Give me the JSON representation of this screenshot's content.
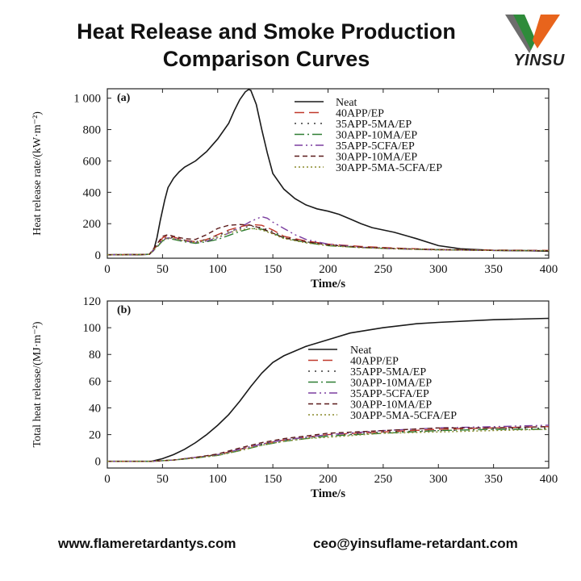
{
  "page": {
    "title_line1": "Heat Release and Smoke Production",
    "title_line2": "Comparison Curves",
    "brand": "YINSU",
    "website": "www.flameretardantys.com",
    "email": "ceo@yinsuflame-retardant.com"
  },
  "colors": {
    "logo_green": "#2e8b3a",
    "logo_orange": "#e8641c",
    "logo_grey": "#6d6d6d"
  },
  "chart_data": [
    {
      "type": "line",
      "panel_label": "(a)",
      "xlabel": "Time/s",
      "ylabel": "Heat release rate/(kW·m⁻²)",
      "xlim": [
        0,
        400
      ],
      "ylim": [
        -20,
        1060
      ],
      "xticks": [
        0,
        50,
        100,
        150,
        200,
        250,
        300,
        350,
        400
      ],
      "yticks": [
        0,
        200,
        400,
        600,
        800,
        1000
      ],
      "ytick_labels": [
        "0",
        "200",
        "400",
        "600",
        "800",
        "1 000"
      ],
      "grid": false,
      "legend_position": "top-right",
      "series": [
        {
          "name": "Neat",
          "color": "#1a1a1a",
          "dash": "",
          "x": [
            0,
            30,
            38,
            42,
            45,
            48,
            52,
            55,
            60,
            65,
            70,
            80,
            90,
            100,
            110,
            115,
            120,
            125,
            128,
            130,
            135,
            140,
            145,
            150,
            160,
            170,
            180,
            190,
            200,
            210,
            220,
            230,
            240,
            250,
            260,
            280,
            300,
            320,
            350,
            380,
            400
          ],
          "y": [
            2,
            2,
            5,
            30,
            110,
            220,
            350,
            430,
            490,
            530,
            560,
            600,
            660,
            740,
            840,
            920,
            990,
            1040,
            1055,
            1050,
            960,
            800,
            650,
            520,
            420,
            360,
            320,
            295,
            280,
            260,
            230,
            200,
            175,
            160,
            145,
            105,
            60,
            40,
            30,
            28,
            25
          ]
        },
        {
          "name": "40APP/EP",
          "color": "#c0392b",
          "dash": "12 6",
          "x": [
            0,
            38,
            45,
            50,
            55,
            60,
            70,
            80,
            90,
            100,
            110,
            120,
            130,
            140,
            150,
            160,
            180,
            200,
            230,
            260,
            300,
            350,
            400
          ],
          "y": [
            2,
            4,
            60,
            110,
            125,
            115,
            95,
            85,
            100,
            130,
            160,
            180,
            195,
            190,
            160,
            120,
            90,
            70,
            55,
            45,
            35,
            32,
            30
          ]
        },
        {
          "name": "35APP-5MA/EP",
          "color": "#3a3a3a",
          "dash": "2 6",
          "x": [
            0,
            38,
            45,
            50,
            55,
            60,
            70,
            80,
            90,
            100,
            110,
            120,
            130,
            140,
            150,
            160,
            180,
            200,
            230,
            260,
            300,
            350,
            400
          ],
          "y": [
            2,
            4,
            60,
            100,
            115,
            110,
            95,
            85,
            100,
            125,
            150,
            170,
            185,
            175,
            150,
            115,
            85,
            65,
            50,
            42,
            35,
            30,
            28
          ]
        },
        {
          "name": "30APP-10MA/EP",
          "color": "#2e7d32",
          "dash": "12 4 2 4",
          "x": [
            0,
            38,
            45,
            50,
            55,
            60,
            70,
            80,
            90,
            100,
            110,
            120,
            130,
            140,
            150,
            160,
            180,
            200,
            230,
            260,
            300,
            350,
            400
          ],
          "y": [
            2,
            4,
            50,
            90,
            105,
            100,
            85,
            75,
            85,
            100,
            125,
            150,
            170,
            165,
            140,
            110,
            80,
            60,
            48,
            40,
            34,
            30,
            28
          ]
        },
        {
          "name": "35APP-5CFA/EP",
          "color": "#7b3fa0",
          "dash": "10 4 2 4 2 4",
          "x": [
            0,
            38,
            45,
            50,
            55,
            60,
            70,
            80,
            90,
            100,
            110,
            120,
            130,
            140,
            145,
            150,
            160,
            170,
            180,
            200,
            230,
            260,
            300,
            350,
            400
          ],
          "y": [
            2,
            4,
            55,
            95,
            110,
            105,
            90,
            80,
            90,
            110,
            140,
            175,
            215,
            245,
            235,
            210,
            170,
            130,
            100,
            70,
            50,
            40,
            33,
            30,
            28
          ]
        },
        {
          "name": "30APP-10MA/EP",
          "color": "#5a1a1a",
          "dash": "6 4",
          "x": [
            0,
            38,
            45,
            50,
            55,
            60,
            70,
            80,
            90,
            100,
            110,
            120,
            130,
            140,
            150,
            160,
            180,
            200,
            230,
            260,
            300,
            350,
            400
          ],
          "y": [
            2,
            4,
            70,
            120,
            130,
            120,
            105,
            100,
            130,
            170,
            190,
            195,
            190,
            170,
            140,
            110,
            85,
            65,
            50,
            42,
            35,
            30,
            28
          ]
        },
        {
          "name": "30APP-5MA-5CFA/EP",
          "color": "#8a8a2a",
          "dash": "2 3",
          "x": [
            0,
            38,
            45,
            50,
            55,
            60,
            70,
            80,
            90,
            100,
            110,
            120,
            130,
            140,
            150,
            160,
            180,
            200,
            230,
            260,
            300,
            350,
            400
          ],
          "y": [
            2,
            4,
            55,
            95,
            110,
            105,
            90,
            80,
            95,
            115,
            140,
            160,
            170,
            160,
            135,
            105,
            78,
            60,
            47,
            40,
            33,
            30,
            28
          ]
        }
      ]
    },
    {
      "type": "line",
      "panel_label": "(b)",
      "xlabel": "Time/s",
      "ylabel": "Total heat release/(MJ·m⁻²)",
      "xlim": [
        0,
        400
      ],
      "ylim": [
        -5,
        120
      ],
      "xticks": [
        0,
        50,
        100,
        150,
        200,
        250,
        300,
        350,
        400
      ],
      "yticks": [
        0,
        20,
        40,
        60,
        80,
        100,
        120
      ],
      "ytick_labels": [
        "0",
        "20",
        "40",
        "60",
        "80",
        "100",
        "120"
      ],
      "grid": false,
      "legend_position": "center-right",
      "series": [
        {
          "name": "Neat",
          "color": "#1a1a1a",
          "dash": "",
          "x": [
            0,
            40,
            50,
            60,
            70,
            80,
            90,
            100,
            110,
            120,
            130,
            140,
            150,
            160,
            180,
            200,
            220,
            250,
            280,
            300,
            350,
            400
          ],
          "y": [
            0,
            0,
            2,
            5,
            9,
            14,
            20,
            27,
            35,
            45,
            56,
            66,
            74,
            79,
            86,
            91,
            96,
            100,
            103,
            104,
            106,
            107
          ]
        },
        {
          "name": "40APP/EP",
          "color": "#c0392b",
          "dash": "12 6",
          "x": [
            0,
            40,
            60,
            80,
            100,
            120,
            140,
            160,
            180,
            200,
            250,
            300,
            350,
            400
          ],
          "y": [
            0,
            0,
            1,
            3,
            5,
            9,
            13,
            16,
            18,
            20,
            22,
            24,
            25,
            26
          ]
        },
        {
          "name": "35APP-5MA/EP",
          "color": "#3a3a3a",
          "dash": "2 6",
          "x": [
            0,
            40,
            60,
            80,
            100,
            120,
            140,
            160,
            180,
            200,
            250,
            300,
            350,
            400
          ],
          "y": [
            0,
            0,
            1,
            3,
            5,
            9,
            13,
            16,
            18,
            19,
            22,
            23,
            24,
            25
          ]
        },
        {
          "name": "30APP-10MA/EP",
          "color": "#2e7d32",
          "dash": "12 4 2 4",
          "x": [
            0,
            40,
            60,
            80,
            100,
            120,
            140,
            160,
            180,
            200,
            250,
            300,
            350,
            400
          ],
          "y": [
            0,
            0,
            1,
            2.5,
            4.5,
            8,
            12,
            15,
            17,
            19,
            21,
            23,
            24,
            24
          ]
        },
        {
          "name": "35APP-5CFA/EP",
          "color": "#7b3fa0",
          "dash": "10 4 2 4 2 4",
          "x": [
            0,
            40,
            60,
            80,
            100,
            120,
            140,
            160,
            180,
            200,
            250,
            300,
            350,
            400
          ],
          "y": [
            0,
            0,
            1,
            3,
            5,
            9,
            13,
            16,
            18,
            20,
            23,
            25,
            26,
            27
          ]
        },
        {
          "name": "30APP-10MA/EP",
          "color": "#5a1a1a",
          "dash": "6 4",
          "x": [
            0,
            40,
            60,
            80,
            100,
            120,
            140,
            160,
            180,
            200,
            250,
            300,
            350,
            400
          ],
          "y": [
            0,
            0,
            1,
            3,
            5.5,
            10,
            14,
            17,
            19,
            21,
            23,
            25,
            25,
            26
          ]
        },
        {
          "name": "30APP-5MA-5CFA/EP",
          "color": "#8a8a2a",
          "dash": "2 3",
          "x": [
            0,
            40,
            60,
            80,
            100,
            120,
            140,
            160,
            180,
            200,
            250,
            300,
            350,
            400
          ],
          "y": [
            0,
            0,
            1,
            2.5,
            4.5,
            8,
            12,
            15,
            17,
            18,
            21,
            22,
            23,
            24
          ]
        }
      ]
    }
  ]
}
